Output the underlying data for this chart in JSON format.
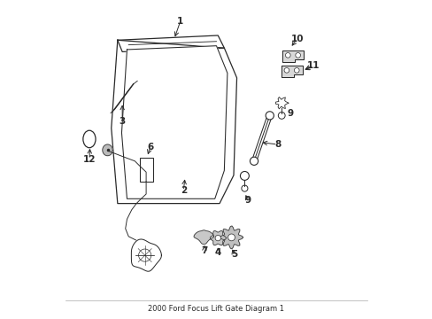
{
  "title": "2000 Ford Focus Lift Gate Diagram 1",
  "bg_color": "#ffffff",
  "line_color": "#2a2a2a",
  "figsize": [
    4.89,
    3.6
  ],
  "dpi": 100,
  "liftgate_outer": {
    "x": [
      0.18,
      0.52,
      0.57,
      0.55,
      0.52,
      0.18
    ],
    "y": [
      0.88,
      0.93,
      0.82,
      0.48,
      0.35,
      0.35
    ]
  },
  "liftgate_inner": {
    "x": [
      0.21,
      0.49,
      0.53,
      0.51,
      0.49,
      0.22
    ],
    "y": [
      0.84,
      0.89,
      0.79,
      0.5,
      0.39,
      0.4
    ]
  }
}
